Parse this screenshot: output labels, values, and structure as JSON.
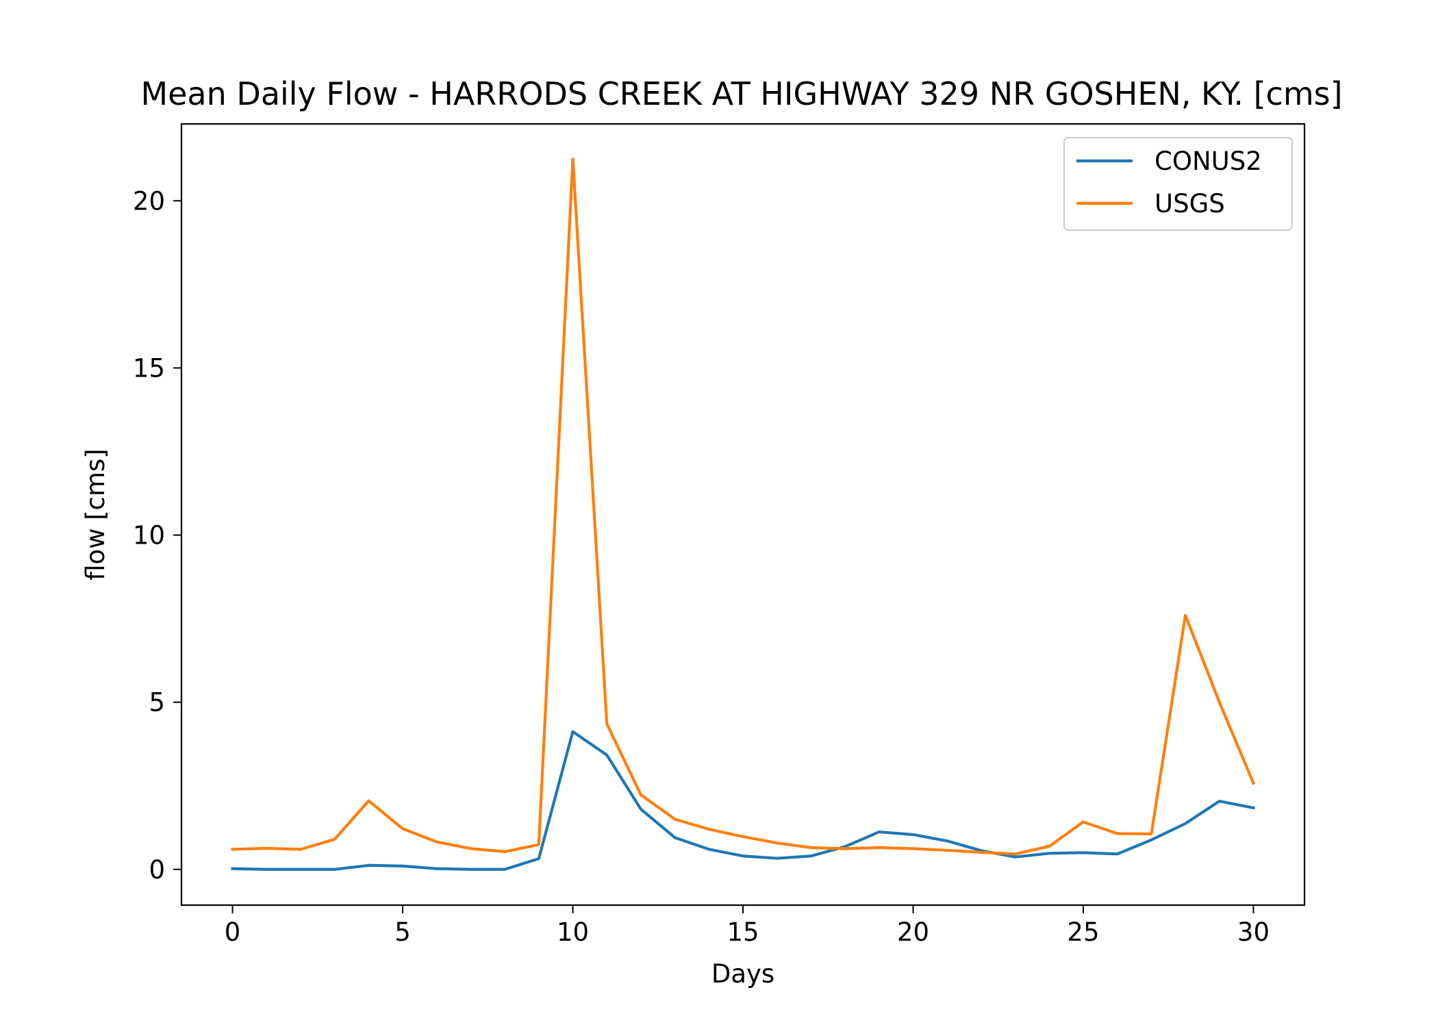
{
  "chart_data": {
    "type": "line",
    "title": "Mean Daily Flow - HARRODS CREEK AT HIGHWAY 329 NR GOSHEN, KY. [cms]",
    "xlabel": "Days",
    "ylabel": "flow [cms]",
    "xlim": [
      -1.5,
      31.5
    ],
    "ylim": [
      -1.07,
      22.3
    ],
    "xticks": [
      0,
      5,
      10,
      15,
      20,
      25,
      30
    ],
    "yticks": [
      0,
      5,
      10,
      15,
      20
    ],
    "grid": false,
    "legend_position": "upper right",
    "x": [
      0,
      1,
      2,
      3,
      4,
      5,
      6,
      7,
      8,
      9,
      10,
      11,
      12,
      13,
      14,
      15,
      16,
      17,
      18,
      19,
      20,
      21,
      22,
      23,
      24,
      25,
      26,
      27,
      28,
      29,
      30
    ],
    "series": [
      {
        "name": "CONUS2",
        "color": "#1f77b4",
        "values": [
          0.02,
          0.0,
          0.0,
          0.0,
          0.12,
          0.1,
          0.02,
          0.0,
          0.0,
          0.32,
          4.12,
          3.42,
          1.8,
          0.95,
          0.6,
          0.4,
          0.33,
          0.4,
          0.68,
          1.12,
          1.04,
          0.85,
          0.56,
          0.37,
          0.48,
          0.5,
          0.46,
          0.88,
          1.37,
          2.04,
          1.84
        ]
      },
      {
        "name": "USGS",
        "color": "#ff7f0e",
        "values": [
          0.6,
          0.63,
          0.6,
          0.9,
          2.05,
          1.22,
          0.82,
          0.62,
          0.53,
          0.74,
          21.25,
          4.35,
          2.23,
          1.5,
          1.2,
          0.98,
          0.79,
          0.65,
          0.62,
          0.65,
          0.62,
          0.57,
          0.51,
          0.46,
          0.69,
          1.42,
          1.07,
          1.06,
          7.6,
          5.0,
          2.58
        ]
      }
    ]
  }
}
